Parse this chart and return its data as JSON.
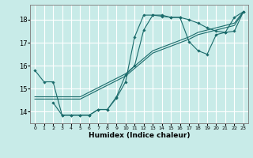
{
  "xlabel": "Humidex (Indice chaleur)",
  "bg_color": "#c8ebe8",
  "grid_color": "#ffffff",
  "line_color": "#1a6b6b",
  "xlim": [
    -0.5,
    23.5
  ],
  "ylim": [
    13.5,
    18.65
  ],
  "yticks": [
    14,
    15,
    16,
    17,
    18
  ],
  "xticks": [
    0,
    1,
    2,
    3,
    4,
    5,
    6,
    7,
    8,
    9,
    10,
    11,
    12,
    13,
    14,
    15,
    16,
    17,
    18,
    19,
    20,
    21,
    22,
    23
  ],
  "line1_x": [
    0,
    1,
    2,
    3,
    4,
    5,
    6,
    7,
    8,
    9,
    10,
    11,
    12,
    13,
    14,
    15,
    16,
    17,
    18,
    19,
    20,
    21,
    22,
    23
  ],
  "line1_y": [
    15.8,
    15.3,
    15.3,
    13.85,
    13.85,
    13.85,
    13.85,
    14.1,
    14.1,
    14.6,
    15.3,
    17.25,
    18.2,
    18.2,
    18.15,
    18.1,
    18.1,
    18.0,
    17.85,
    17.65,
    17.5,
    17.45,
    18.1,
    18.35
  ],
  "line2_x": [
    2,
    3,
    4,
    5,
    6,
    7,
    8,
    9,
    10,
    11,
    12,
    13,
    14,
    15,
    16,
    17,
    18,
    19,
    20,
    21,
    22,
    23
  ],
  "line2_y": [
    14.4,
    13.85,
    13.85,
    13.85,
    13.85,
    14.1,
    14.1,
    14.65,
    15.6,
    16.0,
    17.55,
    18.2,
    18.2,
    18.1,
    18.1,
    17.05,
    16.65,
    16.5,
    17.35,
    17.45,
    17.5,
    18.35
  ],
  "line3_x": [
    0,
    2,
    5,
    10,
    13,
    15,
    17,
    18,
    20,
    21,
    22,
    23
  ],
  "line3_y": [
    14.55,
    14.55,
    14.55,
    15.55,
    16.55,
    16.85,
    17.15,
    17.35,
    17.55,
    17.65,
    17.75,
    18.35
  ],
  "line4_x": [
    0,
    2,
    5,
    10,
    13,
    15,
    17,
    18,
    20,
    21,
    22,
    23
  ],
  "line4_y": [
    14.65,
    14.65,
    14.65,
    15.65,
    16.65,
    16.95,
    17.25,
    17.45,
    17.65,
    17.75,
    17.85,
    18.35
  ]
}
